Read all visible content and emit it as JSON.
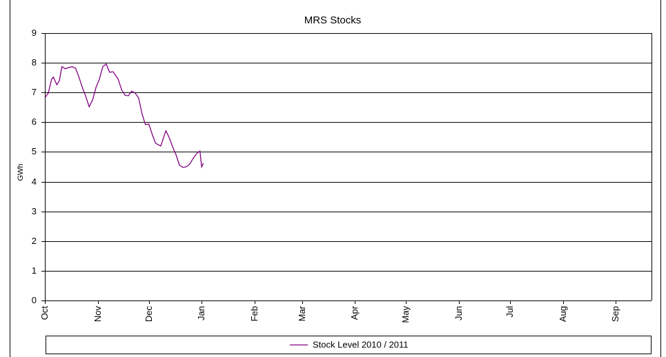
{
  "chart_data": {
    "type": "line",
    "title": "MRS Stocks",
    "y_label": "GWh",
    "x": [
      0,
      2,
      4,
      5,
      7,
      8.5,
      10,
      12,
      14,
      16,
      18,
      20,
      22,
      24,
      26,
      28,
      30,
      32,
      34,
      36,
      38,
      40,
      43,
      45,
      47,
      49,
      51,
      53,
      55,
      57,
      59,
      61,
      63,
      65,
      68,
      71,
      73,
      75,
      77,
      79,
      81,
      83,
      85,
      87,
      89,
      91,
      92,
      93
    ],
    "series": [
      {
        "name": "Stock Level 2010 / 2011",
        "color": "#800080",
        "values": [
          6.82,
          6.98,
          7.45,
          7.52,
          7.26,
          7.4,
          7.87,
          7.8,
          7.84,
          7.87,
          7.82,
          7.52,
          7.17,
          6.87,
          6.52,
          6.75,
          7.17,
          7.45,
          7.87,
          7.96,
          7.68,
          7.7,
          7.45,
          7.1,
          6.91,
          6.89,
          7.05,
          6.98,
          6.82,
          6.29,
          5.92,
          5.94,
          5.59,
          5.29,
          5.2,
          5.71,
          5.48,
          5.17,
          4.9,
          4.55,
          4.48,
          4.5,
          4.59,
          4.78,
          4.94,
          5.03,
          4.5,
          4.62
        ]
      }
    ],
    "xlim": [
      0,
      356
    ],
    "xticks": [
      {
        "value": 0,
        "label": "Oct"
      },
      {
        "value": 31,
        "label": "Nov"
      },
      {
        "value": 61,
        "label": "Dec"
      },
      {
        "value": 92,
        "label": "Jan"
      },
      {
        "value": 123,
        "label": "Feb"
      },
      {
        "value": 151,
        "label": "Mar"
      },
      {
        "value": 182,
        "label": "Apr"
      },
      {
        "value": 212,
        "label": "May"
      },
      {
        "value": 243,
        "label": "Jun"
      },
      {
        "value": 273,
        "label": "Jul"
      },
      {
        "value": 304,
        "label": "Aug"
      },
      {
        "value": 335,
        "label": "Sep"
      }
    ],
    "ylim": [
      0,
      9
    ],
    "yticks": [
      0,
      1,
      2,
      3,
      4,
      5,
      6,
      7,
      8,
      9
    ],
    "grid": true,
    "legend": "bottom"
  }
}
